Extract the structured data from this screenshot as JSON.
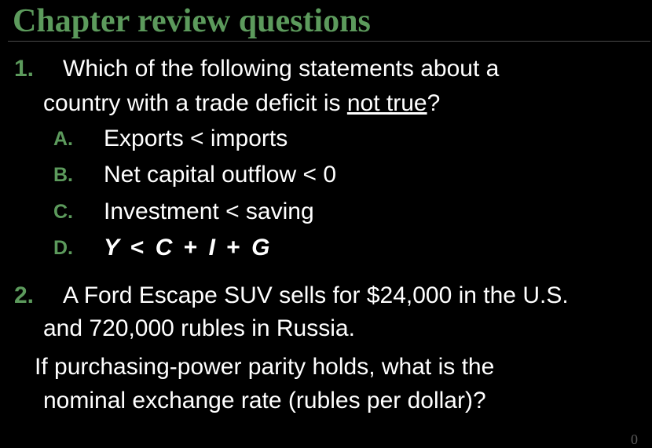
{
  "title": "Chapter review questions",
  "page_number": "0",
  "q1": {
    "number": "1.",
    "line1": "Which of the following statements about a",
    "line2_pre": "country with a trade deficit is ",
    "line2_underlined": "not true",
    "line2_post": "?",
    "options": [
      {
        "letter": "A.",
        "text": "Exports < imports"
      },
      {
        "letter": "B.",
        "text": "Net capital outflow < 0"
      },
      {
        "letter": "C.",
        "text": "Investment < saving"
      },
      {
        "letter": "D.",
        "y": "Y",
        "lt": "<",
        "c": "C",
        "plus1": "+",
        "i": "I",
        "plus2": "+",
        "g": "G"
      }
    ]
  },
  "q2": {
    "number": "2.",
    "line1": "A Ford Escape SUV sells for $24,000 in the U.S.",
    "line2": "and 720,000 rubles in Russia.",
    "line3": "If purchasing-power parity holds, what is the",
    "line4": "nominal exchange rate (rubles per dollar)?"
  },
  "colors": {
    "accent": "#5c9a5c",
    "background": "#000000",
    "text": "#ffffff"
  }
}
